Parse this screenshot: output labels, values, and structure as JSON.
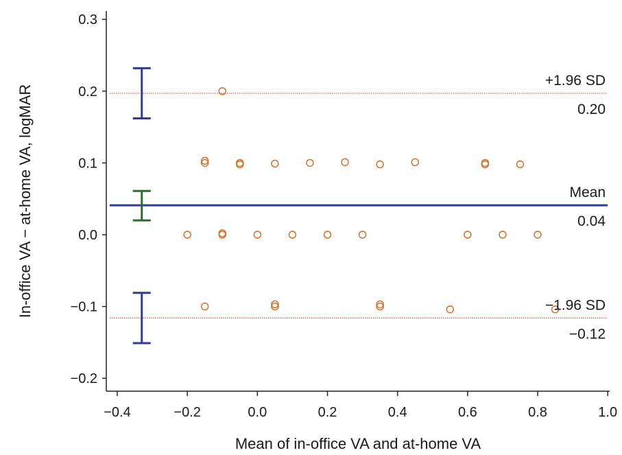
{
  "chart_data": {
    "type": "scatter",
    "title": "",
    "xlabel": "Mean of in-office VA and at-home VA",
    "ylabel": "In-office VA − at-home VA, logMAR",
    "xlim": [
      -0.42,
      1.0
    ],
    "ylim": [
      -0.22,
      0.32
    ],
    "x_ticks": [
      -0.4,
      -0.2,
      0.0,
      0.2,
      0.4,
      0.6,
      0.8,
      1.0
    ],
    "x_tick_labels": [
      "−0.4",
      "−0.2",
      "0.0",
      "0.2",
      "0.4",
      "0.6",
      "0.8",
      "1.0"
    ],
    "y_ticks": [
      -0.2,
      -0.1,
      0.0,
      0.1,
      0.2,
      0.3
    ],
    "y_tick_labels": [
      "−0.2",
      "−0.1",
      "0.0",
      "0.1",
      "0.2",
      "0.3"
    ],
    "grid": false,
    "points": {
      "x": [
        -0.1,
        -0.15,
        -0.15,
        -0.05,
        -0.05,
        0.05,
        0.15,
        0.25,
        0.35,
        0.45,
        0.65,
        0.65,
        0.75,
        -0.2,
        -0.1,
        -0.1,
        0.0,
        0.1,
        0.2,
        0.3,
        0.6,
        0.7,
        0.8,
        -0.15,
        0.05,
        0.05,
        0.35,
        0.35,
        0.55,
        0.85
      ],
      "y": [
        0.2,
        0.1,
        0.103,
        0.1,
        0.098,
        0.099,
        0.1,
        0.101,
        0.098,
        0.101,
        0.1,
        0.098,
        0.098,
        0.0,
        0.0,
        0.002,
        0.0,
        0.0,
        0.0,
        0.0,
        0.0,
        0.0,
        0.0,
        -0.1,
        -0.097,
        -0.1,
        -0.097,
        -0.1,
        -0.104,
        -0.104
      ],
      "color": "#d2691e"
    },
    "reference_lines": [
      {
        "name": "upper_loa",
        "y": 0.197,
        "label": "+1.96 SD",
        "value_label": "0.20",
        "color": "#c0392b",
        "style": "dotted"
      },
      {
        "name": "mean",
        "y": 0.041,
        "label": "Mean",
        "value_label": "0.04",
        "color": "#2e3a9f",
        "style": "solid"
      },
      {
        "name": "lower_loa",
        "y": -0.116,
        "label": "−1.96 SD",
        "value_label": "−0.12",
        "color": "#c0392b",
        "style": "dotted"
      }
    ],
    "confidence_intervals": [
      {
        "name": "upper_loa_ci",
        "x": -0.33,
        "low": 0.162,
        "high": 0.232,
        "color": "#2e3a9f"
      },
      {
        "name": "mean_ci",
        "x": -0.33,
        "low": 0.02,
        "high": 0.061,
        "color": "#2e6b2e"
      },
      {
        "name": "lower_loa_ci",
        "x": -0.33,
        "low": -0.151,
        "high": -0.081,
        "color": "#2e3a9f"
      }
    ]
  }
}
